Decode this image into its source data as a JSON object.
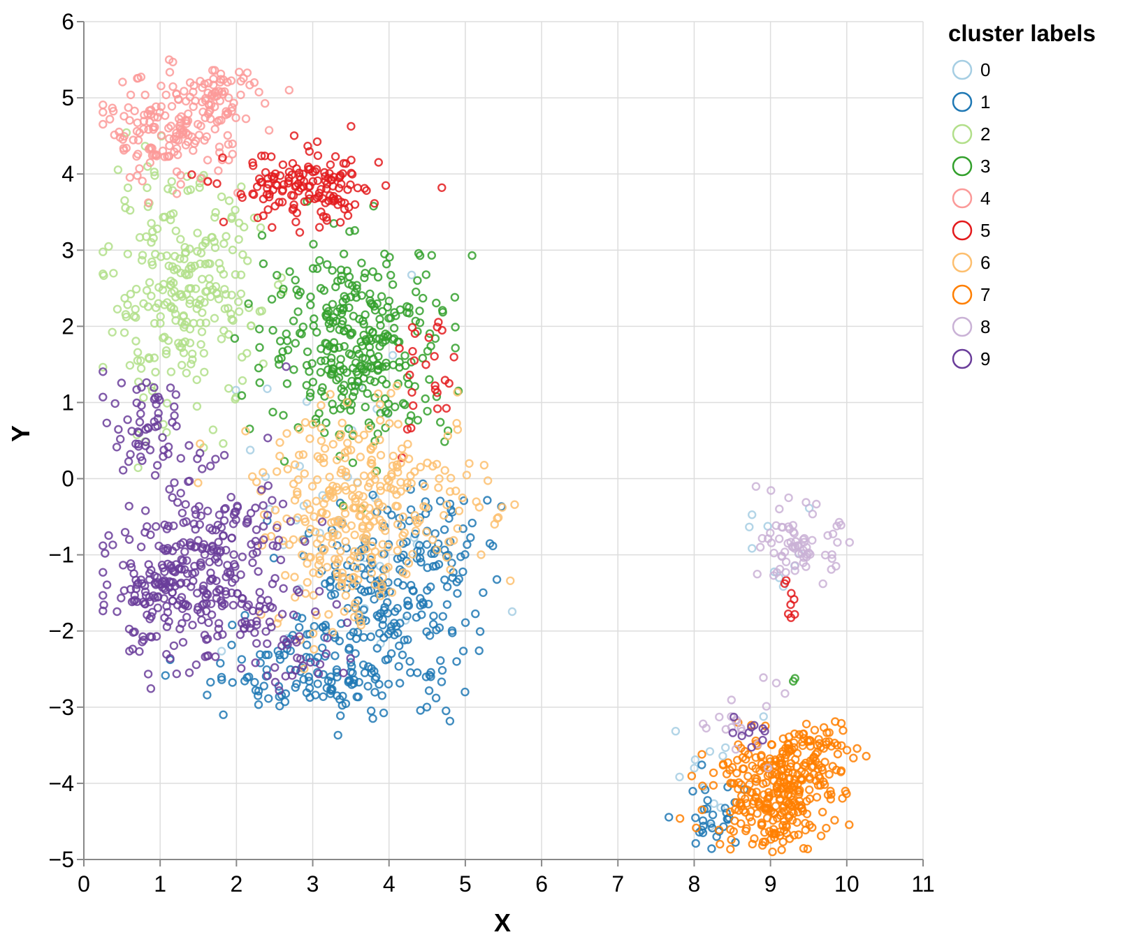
{
  "chart_data": {
    "type": "scatter",
    "title": "",
    "xlabel": "X",
    "ylabel": "Y",
    "xlim": [
      0,
      11
    ],
    "ylim": [
      -5,
      6
    ],
    "x_ticks": [
      "0",
      "1",
      "2",
      "3",
      "4",
      "5",
      "6",
      "7",
      "8",
      "9",
      "10",
      "11"
    ],
    "y_ticks": [
      "6",
      "5",
      "4",
      "3",
      "2",
      "1",
      "0",
      "−1",
      "−2",
      "−3",
      "−4",
      "−5"
    ],
    "grid": true,
    "marker": "open-circle",
    "legend": {
      "title": "cluster labels",
      "placement": "top-right",
      "entries": [
        {
          "label": "0",
          "color": "#a6cee3"
        },
        {
          "label": "1",
          "color": "#1f78b4"
        },
        {
          "label": "2",
          "color": "#b2df8a"
        },
        {
          "label": "3",
          "color": "#33a02c"
        },
        {
          "label": "4",
          "color": "#fb9a99"
        },
        {
          "label": "5",
          "color": "#e31a1c"
        },
        {
          "label": "6",
          "color": "#fdbf6f"
        },
        {
          "label": "7",
          "color": "#ff7f00"
        },
        {
          "label": "8",
          "color": "#cab2d6"
        },
        {
          "label": "9",
          "color": "#6a3d9a"
        }
      ]
    },
    "series": [
      {
        "name": "0",
        "color": "#a6cee3",
        "clusters": [
          {
            "cx": 3.2,
            "cy": -0.6,
            "sx": 1.1,
            "sy": 1.1,
            "n": 35
          },
          {
            "cx": 8.3,
            "cy": -3.9,
            "sx": 0.3,
            "sy": 0.4,
            "n": 12
          },
          {
            "cx": 9.1,
            "cy": -1.0,
            "sx": 0.3,
            "sy": 0.3,
            "n": 10
          }
        ]
      },
      {
        "name": "1",
        "color": "#1f78b4",
        "clusters": [
          {
            "cx": 3.9,
            "cy": -1.7,
            "sx": 0.55,
            "sy": 0.7,
            "n": 230
          },
          {
            "cx": 2.8,
            "cy": -2.6,
            "sx": 0.7,
            "sy": 0.25,
            "n": 90
          },
          {
            "cx": 4.6,
            "cy": -0.8,
            "sx": 0.3,
            "sy": 0.45,
            "n": 45
          },
          {
            "cx": 8.2,
            "cy": -4.5,
            "sx": 0.25,
            "sy": 0.25,
            "n": 30
          }
        ]
      },
      {
        "name": "2",
        "color": "#b2df8a",
        "clusters": [
          {
            "cx": 1.3,
            "cy": 2.4,
            "sx": 0.5,
            "sy": 0.75,
            "n": 260
          }
        ]
      },
      {
        "name": "3",
        "color": "#33a02c",
        "clusters": [
          {
            "cx": 3.6,
            "cy": 1.8,
            "sx": 0.6,
            "sy": 0.65,
            "n": 330
          },
          {
            "cx": 9.3,
            "cy": -2.6,
            "sx": 0.05,
            "sy": 0.1,
            "n": 2
          }
        ]
      },
      {
        "name": "4",
        "color": "#fb9a99",
        "clusters": [
          {
            "cx": 1.2,
            "cy": 4.6,
            "sx": 0.45,
            "sy": 0.35,
            "n": 170
          },
          {
            "cx": 1.8,
            "cy": 5.05,
            "sx": 0.25,
            "sy": 0.15,
            "n": 40
          }
        ]
      },
      {
        "name": "5",
        "color": "#e31a1c",
        "clusters": [
          {
            "cx": 2.9,
            "cy": 3.8,
            "sx": 0.5,
            "sy": 0.25,
            "n": 150
          },
          {
            "cx": 4.5,
            "cy": 1.2,
            "sx": 0.2,
            "sy": 0.5,
            "n": 25
          },
          {
            "cx": 9.2,
            "cy": -1.7,
            "sx": 0.06,
            "sy": 0.3,
            "n": 8
          }
        ]
      },
      {
        "name": "6",
        "color": "#fdbf6f",
        "clusters": [
          {
            "cx": 3.8,
            "cy": -0.2,
            "sx": 0.75,
            "sy": 0.55,
            "n": 260
          },
          {
            "cx": 3.3,
            "cy": -1.3,
            "sx": 0.5,
            "sy": 0.5,
            "n": 70
          }
        ]
      },
      {
        "name": "7",
        "color": "#ff7f00",
        "clusters": [
          {
            "cx": 9.0,
            "cy": -4.1,
            "sx": 0.38,
            "sy": 0.38,
            "n": 280
          },
          {
            "cx": 9.6,
            "cy": -3.6,
            "sx": 0.25,
            "sy": 0.22,
            "n": 70
          }
        ]
      },
      {
        "name": "8",
        "color": "#cab2d6",
        "clusters": [
          {
            "cx": 9.4,
            "cy": -0.9,
            "sx": 0.25,
            "sy": 0.25,
            "n": 70
          },
          {
            "cx": 8.6,
            "cy": -3.1,
            "sx": 0.25,
            "sy": 0.25,
            "n": 18
          }
        ]
      },
      {
        "name": "9",
        "color": "#6a3d9a",
        "clusters": [
          {
            "cx": 1.6,
            "cy": -1.1,
            "sx": 0.55,
            "sy": 0.6,
            "n": 260
          },
          {
            "cx": 0.9,
            "cy": -1.6,
            "sx": 0.35,
            "sy": 0.35,
            "n": 80
          },
          {
            "cx": 0.8,
            "cy": 0.6,
            "sx": 0.3,
            "sy": 0.35,
            "n": 60
          },
          {
            "cx": 2.5,
            "cy": -2.1,
            "sx": 0.5,
            "sy": 0.35,
            "n": 50
          },
          {
            "cx": 8.7,
            "cy": -3.3,
            "sx": 0.15,
            "sy": 0.1,
            "n": 10
          }
        ]
      }
    ]
  }
}
